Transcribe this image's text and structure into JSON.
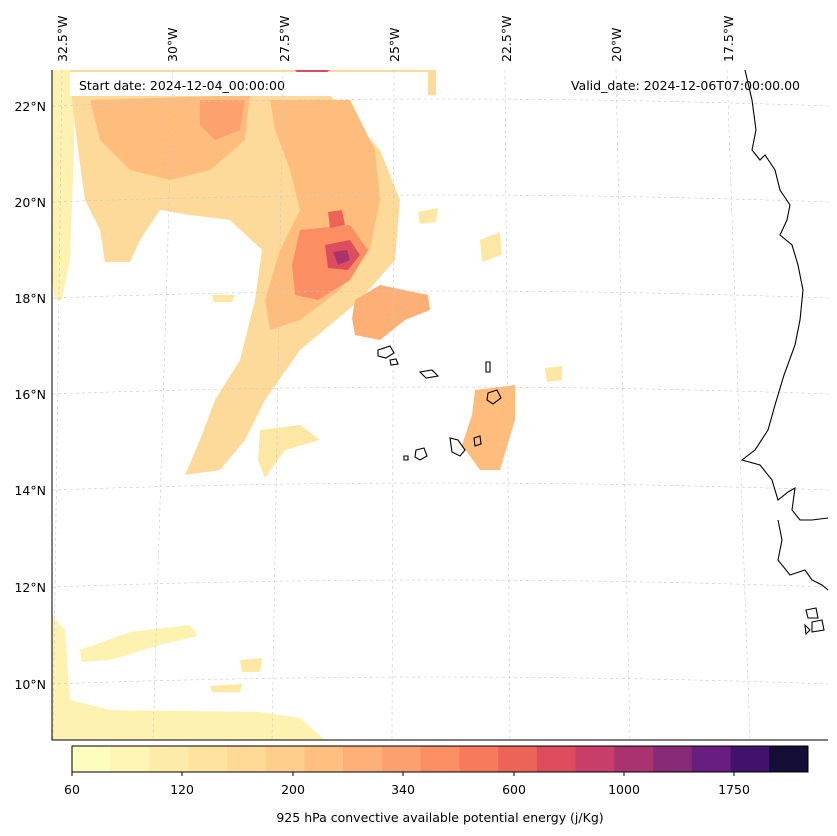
{
  "header": {
    "start_date": "Start date: 2024-12-04_00:00:00",
    "valid_date": "Valid_date: 2024-12-06T07:00:00.00"
  },
  "longitude_ticks": [
    "32.5°W",
    "30°W",
    "27.5°W",
    "25°W",
    "22.5°W",
    "20°W",
    "17.5°W"
  ],
  "latitude_ticks": [
    "22°N",
    "20°N",
    "18°N",
    "16°N",
    "14°N",
    "12°N",
    "10°N"
  ],
  "colorbar": {
    "label": "925 hPa convective available potential energy (j/Kg)",
    "tick_labels": [
      "60",
      "120",
      "200",
      "340",
      "600",
      "1000",
      "1750"
    ],
    "colors": [
      "#fcfdbf",
      "#fdf5b4",
      "#fdeca9",
      "#fee39e",
      "#fed995",
      "#fecf8c",
      "#febf80",
      "#feb078",
      "#fda06f",
      "#fc8e64",
      "#f67a5c",
      "#ec6358",
      "#dd4d5e",
      "#c73f68",
      "#a9336f",
      "#892a76",
      "#681d80",
      "#41126b",
      "#140e36"
    ]
  }
}
